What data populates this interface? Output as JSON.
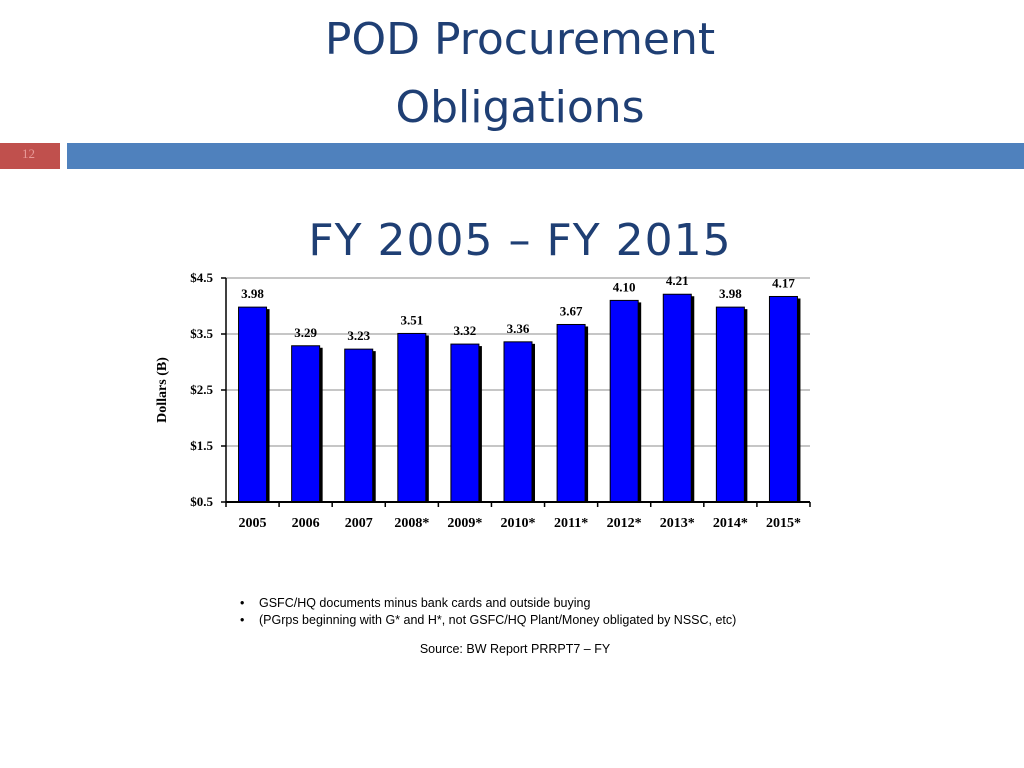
{
  "slide": {
    "title_line1": "POD Procurement",
    "title_line2": "Obligations",
    "page_number": "12",
    "subtitle": "FY 2005 – FY 2015"
  },
  "colors": {
    "title": "#1f3f74",
    "accent_bar": "#4f81bd",
    "page_box": "#c0504d",
    "bar_fill": "#0000ff"
  },
  "chart_data": {
    "type": "bar",
    "title": "FY 2005 – FY 2015",
    "categories": [
      "2005",
      "2006",
      "2007",
      "2008*",
      "2009*",
      "2010*",
      "2011*",
      "2012*",
      "2013*",
      "2014*",
      "2015*"
    ],
    "values": [
      3.98,
      3.29,
      3.23,
      3.51,
      3.32,
      3.36,
      3.67,
      4.1,
      4.21,
      3.98,
      4.17
    ],
    "data_labels": [
      "3.98",
      "3.29",
      "3.23",
      "3.51",
      "3.32",
      "3.36",
      "3.67",
      "4.10",
      "4.21",
      "3.98",
      "4.17"
    ],
    "ylabel": "Dollars (B)",
    "xlabel": "",
    "ylim": [
      0.5,
      4.5
    ],
    "yticks": [
      0.5,
      1.5,
      2.5,
      3.5,
      4.5
    ],
    "ytick_labels": [
      "$0.5",
      "$1.5",
      "$2.5",
      "$3.5",
      "$4.5"
    ],
    "grid": true,
    "legend": "none"
  },
  "notes": [
    "GSFC/HQ documents minus bank cards and outside buying",
    " (PGrps beginning with G* and H*, not GSFC/HQ Plant/Money obligated by NSSC, etc)"
  ],
  "source": "Source: BW Report PRRPT7 – FY"
}
